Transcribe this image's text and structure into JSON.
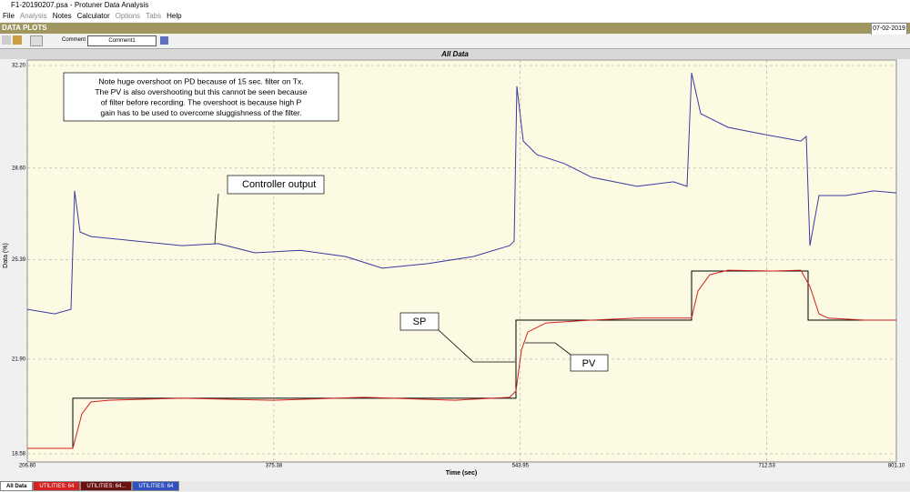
{
  "window": {
    "title": "F1-20190207.psa - Protuner Data Analysis",
    "menu": [
      "File",
      "Analysis",
      "Notes",
      "Calculator",
      "Options",
      "Tabs",
      "Help"
    ],
    "panel_title": "DATA PLOTS",
    "date": "07-02-2019",
    "comment_label": "Comment",
    "comment_value": "Comment1",
    "tabs": [
      "All Data",
      "UTILITIES: 64",
      "UTILITIES: 64...",
      "UTILITIES: 64"
    ]
  },
  "chart_data": {
    "type": "line",
    "title": "All Data",
    "x_label": "Time (sec)",
    "y_label": "Data (%)",
    "xlim": [
      206.8,
      801.1
    ],
    "xticks": [
      {
        "value": 206.8,
        "label": "206.80"
      },
      375.38,
      543.95,
      712.53,
      {
        "value": 801.1,
        "label": "801.10"
      }
    ],
    "ylim": [
      18.58,
      32.2
    ],
    "yticks": [
      18.58,
      {
        "value": 21.9,
        "label": "21.90"
      },
      25.39,
      {
        "value": 28.6,
        "label": "28.60"
      },
      {
        "value": 32.2,
        "label": "32.20"
      }
    ],
    "grid": true,
    "note": [
      "Note huge overshoot on PD because of 15 sec. filter on Tx.",
      "The PV is also overshooting but this cannot be seen because",
      "of filter before recording. The overshoot is because high P",
      "gain has to be used to overcome sluggishness of the filter."
    ],
    "series": [
      {
        "name": "SP",
        "color": "#000000",
        "x": [
          206.8,
          237.91,
          237.91,
          540.97,
          540.97,
          661.07,
          661.07,
          740.73,
          740.73,
          801.1
        ],
        "values": [
          18.77,
          18.77,
          20.53,
          20.53,
          23.27,
          23.27,
          24.99,
          24.99,
          23.27,
          23.27
        ]
      },
      {
        "name": "PV",
        "color": "#d42020",
        "x": [
          206.8,
          237.92,
          244.14,
          250.36,
          262.81,
          312.59,
          374.82,
          437.05,
          499.28,
          536.62,
          540.97,
          544.71,
          549.07,
          561.51,
          592.63,
          623.74,
          661.08,
          665.44,
          673.53,
          685.97,
          717.09,
          735.76,
          741.98,
          748.2,
          754.42,
          779.32,
          801.1
        ],
        "values": [
          18.77,
          18.77,
          19.98,
          20.4,
          20.46,
          20.53,
          20.46,
          20.56,
          20.46,
          20.56,
          20.78,
          22.22,
          22.85,
          23.17,
          23.27,
          23.34,
          23.34,
          24.29,
          24.86,
          25.02,
          24.99,
          25.02,
          24.45,
          23.49,
          23.34,
          23.27,
          23.27
        ]
      },
      {
        "name": "Controller output",
        "color": "#3a3aa0",
        "x": [
          206.8,
          225.47,
          236.67,
          239.16,
          242.89,
          250.36,
          281.48,
          312.59,
          337.48,
          362.38,
          393.49,
          424.61,
          449.5,
          480.61,
          511.73,
          536.62,
          539.72,
          541.6,
          545.95,
          555.29,
          573.96,
          592.63,
          623.74,
          648.63,
          657.97,
          661.08,
          667.3,
          685.97,
          710.86,
          735.76,
          739.49,
          741.98,
          748.2,
          766.87,
          785.54,
          801.1
        ],
        "values": [
          23.65,
          23.49,
          23.65,
          27.8,
          26.36,
          26.2,
          26.04,
          25.88,
          25.95,
          25.63,
          25.72,
          25.5,
          25.09,
          25.25,
          25.5,
          25.88,
          26.04,
          31.47,
          29.55,
          29.07,
          28.76,
          28.28,
          27.96,
          28.12,
          27.96,
          31.94,
          30.51,
          30.03,
          29.78,
          29.55,
          29.71,
          25.88,
          27.64,
          27.64,
          27.8,
          27.73
        ]
      }
    ]
  }
}
